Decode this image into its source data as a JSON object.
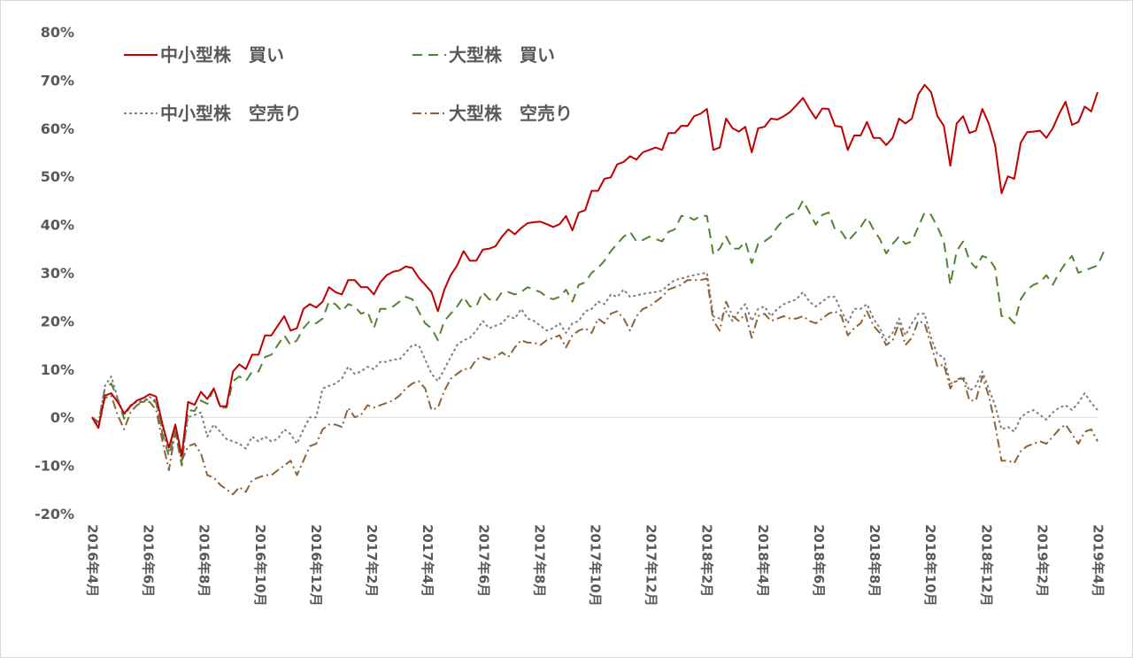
{
  "chart_data": {
    "type": "line",
    "title": "",
    "xlabel": "",
    "ylabel": "",
    "ylim": [
      -20,
      80
    ],
    "y_ticks": [
      "80%",
      "70%",
      "60%",
      "50%",
      "40%",
      "30%",
      "20%",
      "10%",
      "0%",
      "-10%",
      "-20%"
    ],
    "y_tick_values": [
      80,
      70,
      60,
      50,
      40,
      30,
      20,
      10,
      0,
      -10,
      -20
    ],
    "x_ticks": [
      "2016年4月",
      "2016年6月",
      "2016年8月",
      "2016年10月",
      "2016年12月",
      "2017年2月",
      "2017年4月",
      "2017年6月",
      "2017年8月",
      "2017年10月",
      "2017年12月",
      "2018年2月",
      "2018年4月",
      "2018年6月",
      "2018年8月",
      "2018年10月",
      "2018年12月",
      "2019年2月",
      "2019年4月"
    ],
    "grid": false,
    "zero_line": true,
    "legend_position": "top-left",
    "series": [
      {
        "name": "中小型株　買い",
        "color": "#C00000",
        "dash": "solid",
        "values": [
          0.0,
          -2.2,
          4.5,
          5.0,
          3.2,
          0.8,
          2.3,
          3.5,
          4.0,
          4.8,
          4.3,
          -1.5,
          -6.3,
          -1.5,
          -8.0,
          3.2,
          2.6,
          5.3,
          3.8,
          6.0,
          2.3,
          2.3,
          9.5,
          11.0,
          10.0,
          13.0,
          13.0,
          17.0,
          17.0,
          19.0,
          21.0,
          18.0,
          18.5,
          22.5,
          23.5,
          22.8,
          24.0,
          27.0,
          26.0,
          25.5,
          28.5,
          28.5,
          27.0,
          27.0,
          25.5,
          28.0,
          29.5,
          30.2,
          30.5,
          31.3,
          31.0,
          29.0,
          27.5,
          26.0,
          22.0,
          26.5,
          29.5,
          31.5,
          34.5,
          32.5,
          32.5,
          34.8,
          35.0,
          35.5,
          37.5,
          39.0,
          38.0,
          39.3,
          40.3,
          40.5,
          40.6,
          40.1,
          39.5,
          40.1,
          41.8,
          38.8,
          42.5,
          43.0,
          47.0,
          47.0,
          49.5,
          49.8,
          52.5,
          53.0,
          54.2,
          53.5,
          55.0,
          55.5,
          56.0,
          55.5,
          59.0,
          59.0,
          60.5,
          60.5,
          62.5,
          63.0,
          64.0,
          55.5,
          56.0,
          62.0,
          60.0,
          59.3,
          60.3,
          55.0,
          60.0,
          60.3,
          62.0,
          61.8,
          62.5,
          63.4,
          64.8,
          66.3,
          64.0,
          62.0,
          64.1,
          64.0,
          60.5,
          60.3,
          55.5,
          58.5,
          58.5,
          61.3,
          58.0,
          58.0,
          56.5,
          58.0,
          62.0,
          61.0,
          62.0,
          67.0,
          69.0,
          67.5,
          62.5,
          60.5,
          52.2,
          61.0,
          62.5,
          59.0,
          59.5,
          64.0,
          61.0,
          56.5,
          46.5,
          50.0,
          49.5,
          57.0,
          59.2,
          59.3,
          59.5,
          58.0,
          60.0,
          63.0,
          65.5,
          60.7,
          61.3,
          64.5,
          63.5,
          67.5
        ]
      },
      {
        "name": "大型株　買い",
        "color": "#548235",
        "dash": "11,7",
        "values": [
          0.0,
          -1.0,
          6.0,
          7.0,
          3.8,
          -0.3,
          2.5,
          3.0,
          3.2,
          4.0,
          3.0,
          -3.5,
          -8.0,
          -3.0,
          -10.0,
          1.5,
          1.3,
          3.5,
          2.8,
          6.0,
          2.0,
          2.0,
          7.5,
          8.5,
          7.5,
          9.5,
          9.5,
          12.5,
          13.0,
          15.0,
          17.0,
          15.0,
          16.0,
          18.5,
          20.0,
          19.5,
          20.5,
          24.0,
          23.5,
          22.0,
          23.5,
          23.0,
          21.5,
          22.0,
          18.5,
          22.5,
          22.5,
          23.0,
          24.0,
          25.0,
          24.5,
          22.0,
          19.5,
          18.5,
          16.0,
          20.0,
          21.5,
          23.0,
          25.0,
          23.0,
          23.0,
          26.0,
          24.5,
          24.0,
          26.0,
          26.0,
          25.5,
          26.0,
          27.0,
          26.5,
          26.0,
          25.0,
          24.5,
          25.0,
          26.5,
          24.0,
          27.5,
          28.0,
          30.0,
          31.0,
          32.5,
          34.5,
          36.0,
          37.5,
          38.5,
          36.5,
          36.8,
          37.5,
          37.0,
          36.5,
          38.5,
          39.0,
          41.8,
          41.7,
          41.0,
          41.8,
          41.8,
          33.8,
          35.0,
          37.5,
          35.0,
          35.0,
          36.5,
          32.0,
          36.0,
          36.5,
          37.5,
          39.5,
          41.0,
          42.0,
          42.5,
          45.0,
          42.5,
          40.0,
          42.0,
          42.5,
          39.0,
          38.5,
          36.5,
          38.0,
          39.5,
          41.5,
          39.0,
          37.0,
          34.0,
          36.0,
          37.5,
          36.0,
          36.5,
          39.5,
          42.5,
          42.0,
          39.5,
          36.5,
          27.5,
          34.5,
          36.5,
          32.5,
          31.0,
          33.5,
          33.0,
          31.0,
          21.0,
          21.0,
          19.5,
          24.5,
          26.5,
          27.5,
          28.0,
          29.5,
          27.5,
          30.0,
          32.0,
          33.5,
          30.0,
          30.5,
          31.0,
          31.5,
          34.5
        ]
      },
      {
        "name": "中小型株　空売り",
        "color": "#808080",
        "dash": "3,3",
        "values": [
          0.0,
          -1.5,
          6.5,
          8.5,
          4.0,
          0.5,
          2.5,
          3.2,
          3.5,
          4.2,
          3.5,
          -3.0,
          -7.0,
          -2.0,
          -8.5,
          0.0,
          0.5,
          1.0,
          -4.0,
          -1.5,
          -3.0,
          -4.5,
          -5.0,
          -5.5,
          -6.5,
          -4.0,
          -5.0,
          -4.0,
          -5.0,
          -4.5,
          -2.5,
          -3.5,
          -5.5,
          -2.5,
          0.0,
          0.0,
          6.0,
          6.5,
          7.0,
          8.0,
          10.5,
          9.0,
          9.5,
          10.5,
          10.0,
          11.5,
          11.5,
          12.0,
          12.0,
          13.5,
          15.0,
          15.0,
          12.0,
          9.0,
          7.5,
          10.0,
          12.5,
          15.0,
          16.0,
          16.5,
          18.0,
          20.0,
          18.5,
          19.0,
          19.5,
          21.0,
          20.5,
          22.5,
          20.5,
          20.0,
          19.0,
          18.0,
          18.5,
          19.5,
          17.5,
          19.5,
          20.0,
          22.0,
          22.5,
          24.0,
          23.5,
          25.5,
          25.0,
          26.5,
          25.0,
          25.3,
          25.6,
          25.8,
          26.0,
          26.3,
          27.5,
          28.5,
          28.8,
          29.2,
          29.5,
          29.8,
          30.0,
          21.0,
          20.5,
          22.0,
          20.0,
          22.0,
          23.5,
          20.0,
          22.5,
          23.0,
          21.0,
          22.5,
          23.5,
          24.0,
          24.5,
          26.0,
          24.0,
          23.0,
          24.0,
          25.0,
          25.0,
          22.0,
          19.5,
          22.5,
          22.5,
          23.5,
          20.5,
          18.5,
          16.0,
          17.5,
          20.5,
          17.0,
          19.5,
          21.5,
          21.5,
          16.5,
          13.0,
          12.5,
          7.0,
          7.5,
          8.5,
          5.5,
          6.5,
          9.5,
          6.0,
          2.5,
          -2.5,
          -2.0,
          -3.0,
          0.0,
          1.0,
          1.5,
          0.5,
          -0.5,
          1.0,
          2.0,
          2.5,
          1.5,
          3.0,
          5.0,
          3.0,
          1.5
        ]
      },
      {
        "name": "大型株　空売り",
        "color": "#8C6238",
        "dash": "10,4,2,4",
        "values": [
          0.0,
          -2.0,
          4.0,
          4.5,
          0.5,
          -2.5,
          1.0,
          2.5,
          3.2,
          3.2,
          1.5,
          -5.0,
          -11.0,
          -3.0,
          -9.0,
          -6.0,
          -5.5,
          -7.5,
          -12.0,
          -12.5,
          -14.0,
          -15.0,
          -16.0,
          -14.5,
          -15.5,
          -13.0,
          -12.5,
          -12.0,
          -12.0,
          -11.0,
          -10.0,
          -9.0,
          -12.0,
          -9.0,
          -6.0,
          -5.5,
          -2.5,
          -1.5,
          -1.5,
          -2.0,
          2.0,
          0.0,
          0.5,
          2.5,
          2.0,
          2.5,
          3.0,
          3.5,
          4.5,
          6.0,
          7.0,
          7.5,
          6.0,
          1.5,
          2.0,
          5.5,
          8.0,
          9.0,
          10.0,
          10.0,
          12.0,
          12.5,
          12.0,
          12.5,
          13.5,
          12.5,
          14.5,
          16.0,
          15.5,
          15.5,
          15.0,
          16.0,
          16.5,
          17.0,
          14.5,
          17.0,
          18.0,
          18.5,
          17.5,
          20.5,
          19.5,
          21.5,
          22.0,
          20.5,
          18.0,
          21.0,
          22.5,
          23.0,
          24.0,
          25.0,
          26.5,
          27.0,
          27.5,
          28.5,
          28.5,
          28.5,
          28.8,
          20.0,
          18.0,
          24.0,
          21.0,
          20.0,
          21.5,
          16.5,
          21.0,
          21.5,
          20.0,
          20.5,
          21.0,
          20.5,
          20.5,
          21.0,
          20.0,
          19.5,
          20.5,
          21.5,
          22.0,
          21.0,
          17.0,
          18.5,
          19.5,
          22.0,
          19.0,
          17.5,
          15.0,
          16.0,
          19.5,
          15.0,
          16.5,
          20.0,
          19.5,
          15.0,
          10.5,
          11.0,
          6.0,
          8.0,
          8.0,
          3.5,
          3.5,
          8.5,
          4.5,
          -1.5,
          -9.0,
          -9.0,
          -9.5,
          -7.0,
          -6.0,
          -5.5,
          -5.0,
          -5.5,
          -4.0,
          -2.5,
          -1.5,
          -3.5,
          -5.5,
          -3.0,
          -2.5,
          -5.0
        ]
      }
    ]
  }
}
